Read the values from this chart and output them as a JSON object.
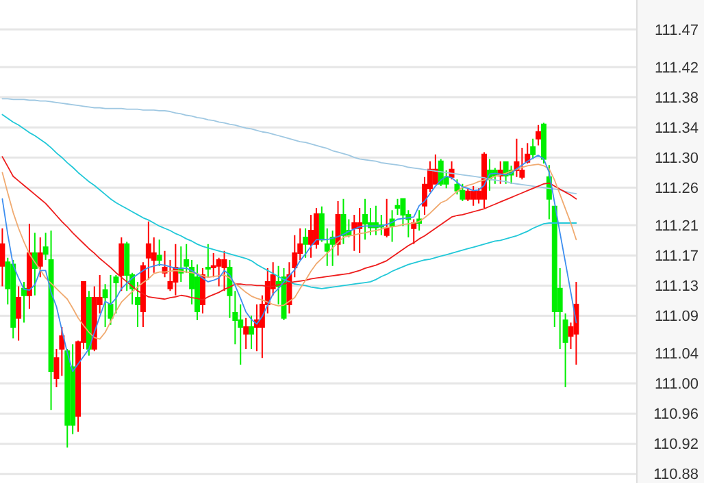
{
  "chart_data": {
    "type": "candlestick",
    "categories": [
      null,
      null,
      null,
      null,
      null,
      null,
      null,
      null,
      null,
      null,
      null,
      null,
      null,
      null,
      null,
      null,
      null,
      null,
      null,
      null,
      null,
      null,
      null,
      null,
      null,
      null,
      null,
      null,
      null,
      null,
      null,
      null,
      null,
      null,
      null,
      null,
      null,
      null,
      null,
      null,
      null,
      null,
      null,
      null,
      null,
      null,
      null,
      null,
      null,
      null,
      null,
      null,
      null,
      null,
      null,
      null,
      null,
      null,
      null,
      null,
      null,
      null,
      null,
      null,
      null,
      null,
      null,
      null,
      null,
      null,
      null,
      null,
      null,
      null,
      null,
      null,
      null,
      null,
      null,
      null,
      null,
      null,
      null,
      null,
      null,
      null,
      null,
      null,
      null,
      null,
      null,
      null,
      null,
      null,
      null,
      null,
      null,
      null,
      null,
      null,
      null,
      null,
      null,
      null,
      null,
      null,
      null
    ],
    "ohlc": [
      [
        111.156,
        111.206,
        111.129,
        111.185
      ],
      [
        111.161,
        111.167,
        111.105,
        111.126
      ],
      [
        111.158,
        111.164,
        111.06,
        111.075
      ],
      [
        111.087,
        111.129,
        111.057,
        111.114
      ],
      [
        111.126,
        111.135,
        111.081,
        111.117
      ],
      [
        111.117,
        111.212,
        111.099,
        111.173
      ],
      [
        111.173,
        111.2,
        111.117,
        111.153
      ],
      [
        111.156,
        111.194,
        111.141,
        111.173
      ],
      [
        111.181,
        111.2,
        111.164,
        111.172
      ],
      [
        111.164,
        111.203,
        110.965,
        111.016
      ],
      [
        111.007,
        111.046,
        110.995,
        111.034
      ],
      [
        111.046,
        111.075,
        111.01,
        111.063
      ],
      [
        111.043,
        111.046,
        110.915,
        110.945
      ],
      [
        111.022,
        111.052,
        110.933,
        110.945
      ],
      [
        110.957,
        111.057,
        110.936,
        111.055
      ],
      [
        111.055,
        111.135,
        111.046,
        111.135
      ],
      [
        111.114,
        111.123,
        111.037,
        111.046
      ],
      [
        111.046,
        111.129,
        111.043,
        111.114
      ],
      [
        111.105,
        111.144,
        111.093,
        111.114
      ],
      [
        111.124,
        111.132,
        111.075,
        111.114
      ],
      [
        111.105,
        111.144,
        111.078,
        111.087
      ],
      [
        111.141,
        111.144,
        111.093,
        111.134
      ],
      [
        111.144,
        111.194,
        111.123,
        111.185
      ],
      [
        111.185,
        111.188,
        111.123,
        111.144
      ],
      [
        111.144,
        111.147,
        111.105,
        111.126
      ],
      [
        111.114,
        111.135,
        111.075,
        111.105
      ],
      [
        111.096,
        111.161,
        111.075,
        111.156
      ],
      [
        111.167,
        111.215,
        111.138,
        111.185
      ],
      [
        111.164,
        111.194,
        111.147,
        111.173
      ],
      [
        111.17,
        111.191,
        111.156,
        111.164
      ],
      [
        111.147,
        111.176,
        111.141,
        111.154
      ],
      [
        111.126,
        111.164,
        111.123,
        111.135
      ],
      [
        111.135,
        111.185,
        111.117,
        111.154
      ],
      [
        111.153,
        111.182,
        111.135,
        111.147
      ],
      [
        111.164,
        111.185,
        111.147,
        111.156
      ],
      [
        111.154,
        111.164,
        111.105,
        111.126
      ],
      [
        111.141,
        111.158,
        111.084,
        111.096
      ],
      [
        111.105,
        111.153,
        111.093,
        111.144
      ],
      [
        111.154,
        111.185,
        111.141,
        111.153
      ],
      [
        111.156,
        111.173,
        111.141,
        111.154
      ],
      [
        111.156,
        111.167,
        111.129,
        111.164
      ],
      [
        111.154,
        111.176,
        111.123,
        111.164
      ],
      [
        111.154,
        111.164,
        111.087,
        111.117
      ],
      [
        111.094,
        111.123,
        111.052,
        111.084
      ],
      [
        111.084,
        111.105,
        111.025,
        111.075
      ],
      [
        111.066,
        111.087,
        111.046,
        111.075
      ],
      [
        111.075,
        111.09,
        111.046,
        111.066
      ],
      [
        111.075,
        111.105,
        111.043,
        111.084
      ],
      [
        111.075,
        111.117,
        111.034,
        111.105
      ],
      [
        111.105,
        111.153,
        111.093,
        111.135
      ],
      [
        111.126,
        111.161,
        111.117,
        111.144
      ],
      [
        111.135,
        111.156,
        111.105,
        111.129
      ],
      [
        111.141,
        111.153,
        111.084,
        111.087
      ],
      [
        111.105,
        111.161,
        111.093,
        111.144
      ],
      [
        111.154,
        111.197,
        111.141,
        111.173
      ],
      [
        111.173,
        111.206,
        111.164,
        111.185
      ],
      [
        111.194,
        111.206,
        111.167,
        111.185
      ],
      [
        111.185,
        111.224,
        111.167,
        111.203
      ],
      [
        111.185,
        111.233,
        111.179,
        111.225
      ],
      [
        111.225,
        111.235,
        111.188,
        111.191
      ],
      [
        111.185,
        111.206,
        111.156,
        111.176
      ],
      [
        111.194,
        111.203,
        111.156,
        111.185
      ],
      [
        111.185,
        111.242,
        111.17,
        111.224
      ],
      [
        111.224,
        111.245,
        111.185,
        111.197
      ],
      [
        111.203,
        111.218,
        111.194,
        111.197
      ],
      [
        111.206,
        111.224,
        111.176,
        111.213
      ],
      [
        111.206,
        111.233,
        111.173,
        111.213
      ],
      [
        111.224,
        111.245,
        111.191,
        111.212
      ],
      [
        111.213,
        111.233,
        111.197,
        111.207
      ],
      [
        111.213,
        111.236,
        111.197,
        111.207
      ],
      [
        111.21,
        111.224,
        111.197,
        111.208
      ],
      [
        111.197,
        111.245,
        111.194,
        111.206
      ],
      [
        111.218,
        111.23,
        111.188,
        111.209
      ],
      [
        111.236,
        111.245,
        111.224,
        111.233
      ],
      [
        111.245,
        111.245,
        111.209,
        111.224
      ],
      [
        111.224,
        111.23,
        111.194,
        111.218
      ],
      [
        111.206,
        111.218,
        111.185,
        111.213
      ],
      [
        111.218,
        111.23,
        111.203,
        111.213
      ],
      [
        111.236,
        111.274,
        111.224,
        111.264
      ],
      [
        111.259,
        111.295,
        111.254,
        111.284
      ],
      [
        111.265,
        111.304,
        111.265,
        111.284
      ],
      [
        111.295,
        111.298,
        111.262,
        111.265
      ],
      [
        111.274,
        111.283,
        111.259,
        111.265
      ],
      [
        111.274,
        111.295,
        111.271,
        111.284
      ],
      [
        111.264,
        111.271,
        111.251,
        111.256
      ],
      [
        111.256,
        111.265,
        111.242,
        111.245
      ],
      [
        111.245,
        111.259,
        111.242,
        111.255
      ],
      [
        111.245,
        111.262,
        111.236,
        111.255
      ],
      [
        111.245,
        111.259,
        111.239,
        111.255
      ],
      [
        111.245,
        111.307,
        111.233,
        111.304
      ],
      [
        111.283,
        111.298,
        111.256,
        111.271
      ],
      [
        111.283,
        111.286,
        111.265,
        111.276
      ],
      [
        111.276,
        111.295,
        111.265,
        111.283
      ],
      [
        111.294,
        111.295,
        111.265,
        111.276
      ],
      [
        111.283,
        111.289,
        111.265,
        111.277
      ],
      [
        111.283,
        111.325,
        111.274,
        111.294
      ],
      [
        111.274,
        111.313,
        111.271,
        111.283
      ],
      [
        111.294,
        111.319,
        111.292,
        111.304
      ],
      [
        111.314,
        111.325,
        111.298,
        111.304
      ],
      [
        111.325,
        111.343,
        111.316,
        111.334
      ],
      [
        111.344,
        111.346,
        111.292,
        111.298
      ],
      [
        111.274,
        111.29,
        111.218,
        111.245
      ],
      [
        111.235,
        111.236,
        111.075,
        111.096
      ],
      [
        111.126,
        111.153,
        111.046,
        111.096
      ],
      [
        111.084,
        111.093,
        110.995,
        111.055
      ],
      [
        111.063,
        111.081,
        111.046,
        111.075
      ],
      [
        111.066,
        111.135,
        111.025,
        111.105
      ]
    ],
    "colors": [
      "#ff0000",
      "#00ee00",
      "#00ee00",
      "#ff0000",
      "#00ee00",
      "#ff0000",
      "#00ee00",
      "#ff0000",
      "#00ee00",
      "#00ee00",
      "#ff0000",
      "#ff0000",
      "#00ee00",
      "#00ee00",
      "#ff0000",
      "#ff0000",
      "#00ee00",
      "#ff0000",
      "#ff0000",
      "#00ee00",
      "#00ee00",
      "#00ee00",
      "#ff0000",
      "#00ee00",
      "#00ee00",
      "#00ee00",
      "#ff0000",
      "#ff0000",
      "#ff0000",
      "#00ee00",
      "#ff0000",
      "#ff0000",
      "#ff0000",
      "#00ee00",
      "#00ee00",
      "#00ee00",
      "#00ee00",
      "#ff0000",
      "#00ee00",
      "#ff0000",
      "#ff0000",
      "#ff0000",
      "#00ee00",
      "#00ee00",
      "#00ee00",
      "#ff0000",
      "#00ee00",
      "#ff0000",
      "#ff0000",
      "#ff0000",
      "#ff0000",
      "#00ee00",
      "#00ee00",
      "#ff0000",
      "#ff0000",
      "#ff0000",
      "#00ee00",
      "#ff0000",
      "#ff0000",
      "#00ee00",
      "#00ee00",
      "#00ee00",
      "#ff0000",
      "#00ee00",
      "#00ee00",
      "#ff0000",
      "#ff0000",
      "#00ee00",
      "#00ee00",
      "#00ee00",
      "#00ee00",
      "#ff0000",
      "#00ee00",
      "#00ee00",
      "#00ee00",
      "#00ee00",
      "#ff0000",
      "#00ee00",
      "#ff0000",
      "#ff0000",
      "#ff0000",
      "#00ee00",
      "#00ee00",
      "#ff0000",
      "#00ee00",
      "#00ee00",
      "#ff0000",
      "#ff0000",
      "#ff0000",
      "#ff0000",
      "#00ee00",
      "#00ee00",
      "#ff0000",
      "#00ee00",
      "#00ee00",
      "#ff0000",
      "#ff0000",
      "#ff0000",
      "#00ee00",
      "#ff0000",
      "#00ee00",
      "#00ee00",
      "#00ee00",
      "#00ee00",
      "#00ee00",
      "#ff0000",
      "#ff0000"
    ],
    "series": [
      {
        "type": "line",
        "color": "#9fc8e2",
        "values": [
          111.378,
          111.378,
          111.377,
          111.377,
          111.377,
          111.376,
          111.376,
          111.375,
          111.375,
          111.374,
          111.373,
          111.372,
          111.371,
          111.37,
          111.369,
          111.368,
          111.367,
          111.366,
          111.366,
          111.365,
          111.365,
          111.365,
          111.365,
          111.364,
          111.364,
          111.364,
          111.363,
          111.363,
          111.363,
          111.362,
          111.362,
          111.361,
          111.359,
          111.358,
          111.356,
          111.355,
          111.353,
          111.352,
          111.35,
          111.349,
          111.347,
          111.346,
          111.344,
          111.343,
          111.341,
          111.339,
          111.338,
          111.336,
          111.334,
          111.333,
          111.331,
          111.329,
          111.327,
          111.325,
          111.323,
          111.321,
          111.32,
          111.318,
          111.316,
          111.314,
          111.312,
          111.309,
          111.307,
          111.305,
          111.303,
          111.3,
          111.298,
          111.297,
          111.296,
          111.295,
          111.293,
          111.292,
          111.291,
          111.29,
          111.289,
          111.287,
          111.286,
          111.285,
          111.284,
          111.283,
          111.282,
          111.281,
          111.28,
          111.279,
          111.278,
          111.277,
          111.276,
          111.275,
          111.274,
          111.273,
          111.271,
          111.27,
          111.269,
          111.268,
          111.266,
          111.265,
          111.264,
          111.263,
          111.262,
          111.261,
          111.26,
          111.259,
          111.258,
          111.257,
          111.255,
          111.253,
          111.252
        ]
      },
      {
        "type": "line",
        "color": "#22c8d8",
        "values": [
          111.357,
          111.352,
          111.347,
          111.343,
          111.338,
          111.333,
          111.329,
          111.324,
          111.319,
          111.313,
          111.306,
          111.3,
          111.293,
          111.287,
          111.28,
          111.274,
          111.268,
          111.263,
          111.257,
          111.251,
          111.245,
          111.24,
          111.236,
          111.232,
          111.228,
          111.224,
          111.22,
          111.217,
          111.213,
          111.209,
          111.206,
          111.203,
          111.199,
          111.196,
          111.192,
          111.189,
          111.185,
          111.182,
          111.18,
          111.178,
          111.176,
          111.174,
          111.172,
          111.17,
          111.168,
          111.166,
          111.163,
          111.158,
          111.154,
          111.15,
          111.146,
          111.142,
          111.138,
          111.135,
          111.132,
          111.131,
          111.13,
          111.128,
          111.127,
          111.126,
          111.127,
          111.128,
          111.129,
          111.13,
          111.131,
          111.132,
          111.133,
          111.134,
          111.135,
          111.138,
          111.142,
          111.145,
          111.149,
          111.152,
          111.155,
          111.158,
          111.16,
          111.162,
          111.164,
          111.165,
          111.167,
          111.169,
          111.171,
          111.173,
          111.175,
          111.177,
          111.179,
          111.181,
          111.183,
          111.185,
          111.187,
          111.189,
          111.19,
          111.192,
          111.194,
          111.196,
          111.199,
          111.202,
          111.206,
          111.209,
          111.212,
          111.213,
          111.213,
          111.213,
          111.213,
          111.213,
          111.213
        ]
      },
      {
        "type": "line",
        "color": "#ee1c1c",
        "values": [
          111.301,
          111.288,
          111.275,
          111.269,
          111.263,
          111.257,
          111.251,
          111.245,
          111.239,
          111.231,
          111.223,
          111.215,
          111.208,
          111.2,
          111.193,
          111.186,
          111.179,
          111.173,
          111.166,
          111.16,
          111.154,
          111.147,
          111.141,
          111.135,
          111.129,
          111.123,
          111.119,
          111.115,
          111.114,
          111.113,
          111.112,
          111.114,
          111.115,
          111.117,
          111.116,
          111.114,
          111.113,
          111.111,
          111.115,
          111.118,
          111.121,
          111.125,
          111.128,
          111.132,
          111.132,
          111.131,
          111.131,
          111.13,
          111.13,
          111.129,
          111.129,
          111.131,
          111.132,
          111.134,
          111.135,
          111.136,
          111.137,
          111.139,
          111.14,
          111.141,
          111.142,
          111.143,
          111.144,
          111.145,
          111.146,
          111.148,
          111.15,
          111.153,
          111.155,
          111.157,
          111.16,
          111.163,
          111.168,
          111.173,
          111.178,
          111.183,
          111.187,
          111.192,
          111.196,
          111.201,
          111.206,
          111.211,
          111.216,
          111.221,
          111.223,
          111.224,
          111.226,
          111.228,
          111.23,
          111.232,
          111.235,
          111.238,
          111.241,
          111.244,
          111.247,
          111.25,
          111.253,
          111.256,
          111.259,
          111.262,
          111.265,
          111.266,
          111.262,
          111.258,
          111.254,
          111.25,
          111.245
        ]
      },
      {
        "type": "line",
        "color": "#f0aa70",
        "values": [
          111.28,
          111.253,
          111.227,
          111.206,
          111.188,
          111.172,
          111.161,
          111.151,
          111.14,
          111.133,
          111.126,
          111.119,
          111.112,
          111.1,
          111.087,
          111.077,
          111.068,
          111.061,
          111.059,
          111.068,
          111.082,
          111.096,
          111.108,
          111.115,
          111.122,
          111.128,
          111.134,
          111.139,
          111.146,
          111.148,
          111.148,
          111.149,
          111.15,
          111.149,
          111.148,
          111.147,
          111.146,
          111.143,
          111.141,
          111.142,
          111.143,
          111.144,
          111.14,
          111.133,
          111.127,
          111.121,
          111.116,
          111.113,
          111.111,
          111.108,
          111.105,
          111.103,
          111.104,
          111.109,
          111.114,
          111.126,
          111.137,
          111.149,
          111.159,
          111.166,
          111.173,
          111.18,
          111.187,
          111.194,
          111.196,
          111.197,
          111.199,
          111.2,
          111.202,
          111.203,
          111.205,
          111.207,
          111.208,
          111.209,
          111.211,
          111.212,
          111.213,
          111.215,
          111.22,
          111.226,
          111.233,
          111.24,
          111.243,
          111.249,
          111.255,
          111.26,
          111.263,
          111.265,
          111.268,
          111.27,
          111.272,
          111.275,
          111.277,
          111.279,
          111.282,
          111.284,
          111.287,
          111.289,
          111.29,
          111.291,
          111.289,
          111.285,
          111.27,
          111.251,
          111.232,
          111.213,
          111.191
        ]
      },
      {
        "type": "line",
        "color": "#3d8ef0",
        "values": [
          111.245,
          111.198,
          111.157,
          111.14,
          111.125,
          111.124,
          111.131,
          111.15,
          111.15,
          111.121,
          111.102,
          111.071,
          111.041,
          111.016,
          111.026,
          111.036,
          111.046,
          111.068,
          111.089,
          111.109,
          111.105,
          111.113,
          111.126,
          111.133,
          111.14,
          111.145,
          111.15,
          111.154,
          111.156,
          111.158,
          111.157,
          111.155,
          111.153,
          111.153,
          111.153,
          111.15,
          111.145,
          111.14,
          111.135,
          111.137,
          111.14,
          111.15,
          111.144,
          111.13,
          111.113,
          111.095,
          111.085,
          111.079,
          111.089,
          111.104,
          111.119,
          111.126,
          111.135,
          111.143,
          111.151,
          111.163,
          111.172,
          111.182,
          111.191,
          111.191,
          111.191,
          111.193,
          111.195,
          111.198,
          111.202,
          111.205,
          111.208,
          111.209,
          111.209,
          111.209,
          111.209,
          111.211,
          111.214,
          111.218,
          111.219,
          111.22,
          111.221,
          111.236,
          111.242,
          111.252,
          111.262,
          111.27,
          111.275,
          111.273,
          111.267,
          111.261,
          111.259,
          111.256,
          111.257,
          111.263,
          111.278,
          111.279,
          111.278,
          111.277,
          111.279,
          111.285,
          111.29,
          111.295,
          111.299,
          111.303,
          111.298,
          111.28,
          111.24,
          111.2,
          111.161,
          111.121,
          111.081
        ]
      }
    ],
    "ylim": [
      110.868,
      111.509
    ],
    "yticks": [
      110.88,
      110.92,
      110.96,
      {
        "value": 111,
        "label": "111.00"
      },
      111.04,
      111.09,
      111.13,
      111.17,
      111.21,
      111.26,
      {
        "value": 111.3,
        "label": "111.30"
      },
      111.34,
      111.38,
      111.42,
      111.47
    ],
    "tick_labels": "y",
    "grid": "y"
  }
}
